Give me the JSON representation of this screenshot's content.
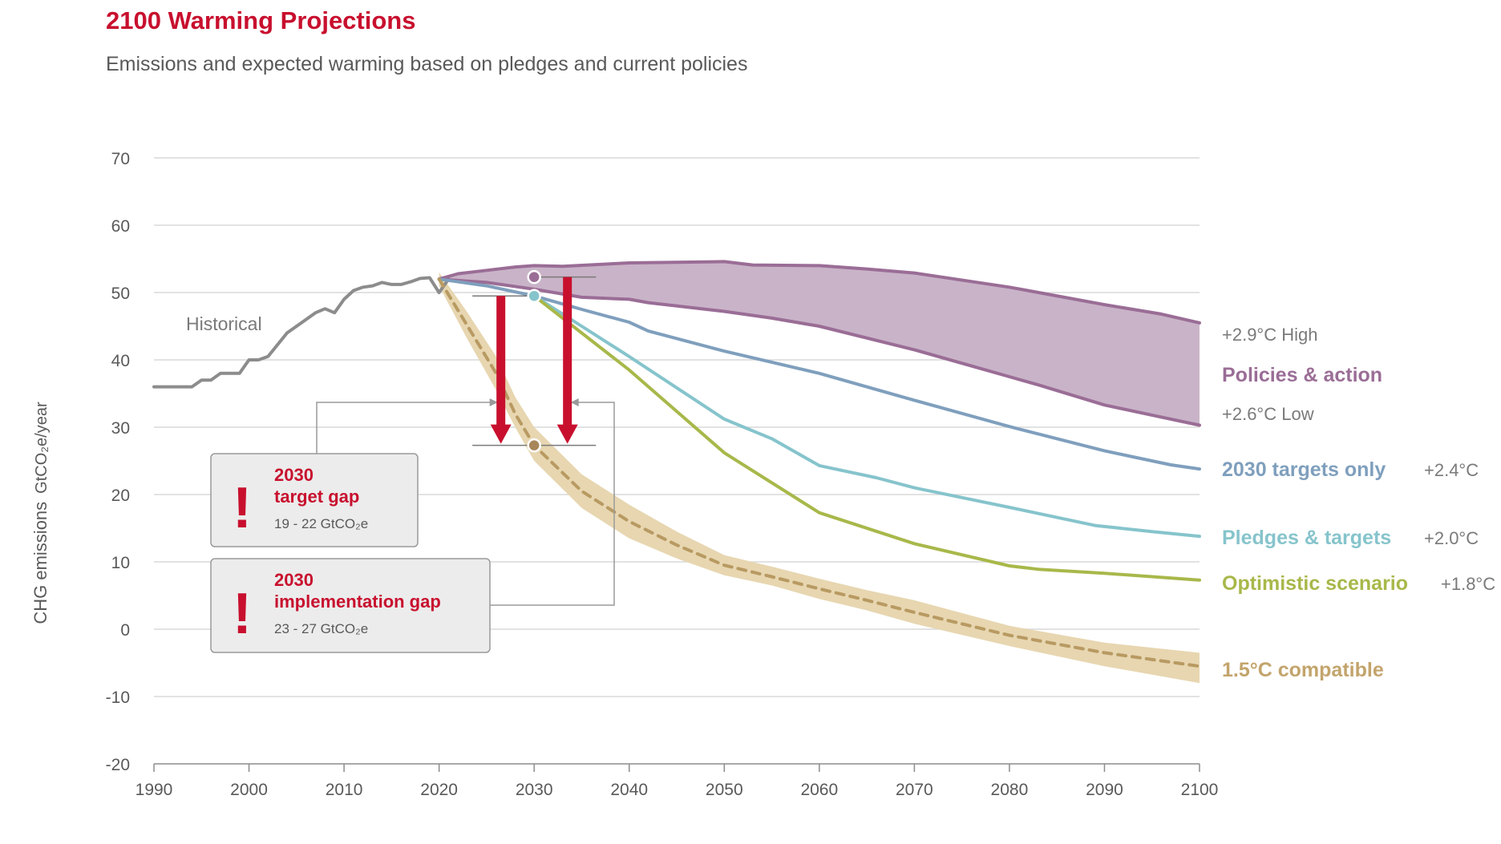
{
  "title": "2100 Warming Projections",
  "subtitle": "Emissions and expected warming based on pledges and current policies",
  "colors": {
    "title": "#c8102e",
    "historical": "#8c8c8c",
    "policies": "#9a6d96",
    "policies_fill": "#c9b3c8",
    "targets_2030": "#7f9fbd",
    "pledges": "#86c4cc",
    "optimistic": "#a8b84a",
    "compatible": "#c3a46c",
    "compatible_band": "#e7d6b0",
    "gap_arrow": "#c8102e"
  },
  "chart_data": {
    "type": "line",
    "title": "2100 Warming Projections",
    "subtitle": "Emissions and expected warming based on pledges and current policies",
    "xlabel": "",
    "ylabel": "CHG emissions",
    "ylabel_unit": "GtCO₂e/year",
    "xlim": [
      1990,
      2100
    ],
    "ylim": [
      -20,
      70
    ],
    "x_ticks": [
      "1990",
      "2000",
      "2010",
      "2020",
      "2030",
      "2040",
      "2050",
      "2060",
      "2070",
      "2080",
      "2090",
      "2100"
    ],
    "y_ticks": [
      "70",
      "60",
      "50",
      "40",
      "30",
      "20",
      "10",
      "0",
      "-10",
      "-20"
    ],
    "series": [
      {
        "id": "historical",
        "name": "Historical",
        "points": [
          [
            1990,
            36
          ],
          [
            1994,
            36
          ],
          [
            1995,
            37
          ],
          [
            1996,
            37
          ],
          [
            1997,
            38
          ],
          [
            1999,
            38
          ],
          [
            2000,
            40
          ],
          [
            2001,
            40
          ],
          [
            2002,
            40.5
          ],
          [
            2004,
            44
          ],
          [
            2006,
            46
          ],
          [
            2007,
            47
          ],
          [
            2008,
            47.6
          ],
          [
            2009,
            47
          ],
          [
            2010,
            49
          ],
          [
            2011,
            50.3
          ],
          [
            2012,
            50.8
          ],
          [
            2013,
            51
          ],
          [
            2014,
            51.5
          ],
          [
            2015,
            51.2
          ],
          [
            2016,
            51.2
          ],
          [
            2017,
            51.6
          ],
          [
            2018,
            52.1
          ],
          [
            2019,
            52.2
          ],
          [
            2020,
            50
          ],
          [
            2021,
            52
          ]
        ]
      },
      {
        "id": "policies_high",
        "name": "Policies & action (high)",
        "temp_label": "+2.9°C High",
        "points": [
          [
            2020,
            52
          ],
          [
            2022,
            52.8
          ],
          [
            2025,
            53.3
          ],
          [
            2028,
            53.8
          ],
          [
            2030,
            54
          ],
          [
            2033,
            53.9
          ],
          [
            2040,
            54.4
          ],
          [
            2050,
            54.6
          ],
          [
            2053,
            54.1
          ],
          [
            2060,
            54
          ],
          [
            2065,
            53.5
          ],
          [
            2070,
            52.9
          ],
          [
            2080,
            50.8
          ],
          [
            2090,
            48.2
          ],
          [
            2096,
            46.8
          ],
          [
            2100,
            45.5
          ]
        ]
      },
      {
        "id": "policies_low",
        "name": "Policies & action (low)",
        "temp_label": "+2.6°C Low",
        "points": [
          [
            2020,
            52
          ],
          [
            2025,
            51.5
          ],
          [
            2030,
            50.5
          ],
          [
            2035,
            49.3
          ],
          [
            2040,
            49
          ],
          [
            2042,
            48.5
          ],
          [
            2050,
            47.2
          ],
          [
            2055,
            46.2
          ],
          [
            2060,
            45
          ],
          [
            2070,
            41.5
          ],
          [
            2075,
            39.5
          ],
          [
            2080,
            37.5
          ],
          [
            2083,
            36.3
          ],
          [
            2090,
            33.3
          ],
          [
            2095,
            31.8
          ],
          [
            2100,
            30.3
          ]
        ]
      },
      {
        "id": "targets_2030",
        "name": "2030 targets only",
        "temp_label": "+2.4°C",
        "points": [
          [
            2020,
            52
          ],
          [
            2025,
            51
          ],
          [
            2030,
            49.5
          ],
          [
            2035,
            47.5
          ],
          [
            2040,
            45.6
          ],
          [
            2042,
            44.3
          ],
          [
            2050,
            41.3
          ],
          [
            2060,
            38
          ],
          [
            2070,
            34
          ],
          [
            2080,
            30.1
          ],
          [
            2090,
            26.5
          ],
          [
            2093,
            25.6
          ],
          [
            2097,
            24.4
          ],
          [
            2100,
            23.8
          ]
        ]
      },
      {
        "id": "pledges",
        "name": "Pledges & targets",
        "temp_label": "+2.0°C",
        "points": [
          [
            2030,
            49.5
          ],
          [
            2035,
            45
          ],
          [
            2040,
            40.5
          ],
          [
            2050,
            31.2
          ],
          [
            2055,
            28.3
          ],
          [
            2060,
            24.3
          ],
          [
            2066,
            22.5
          ],
          [
            2070,
            21
          ],
          [
            2080,
            18.1
          ],
          [
            2089,
            15.4
          ],
          [
            2095,
            14.5
          ],
          [
            2100,
            13.8
          ]
        ]
      },
      {
        "id": "optimistic",
        "name": "Optimistic scenario",
        "temp_label": "+1.8°C",
        "points": [
          [
            2030,
            49.5
          ],
          [
            2040,
            38.5
          ],
          [
            2050,
            26.2
          ],
          [
            2060,
            17.3
          ],
          [
            2070,
            12.7
          ],
          [
            2080,
            9.4
          ],
          [
            2083,
            8.9
          ],
          [
            2090,
            8.3
          ],
          [
            2100,
            7.3
          ]
        ]
      },
      {
        "id": "compatible",
        "name": "1.5°C compatible",
        "points": [
          [
            2020,
            52
          ],
          [
            2023,
            45
          ],
          [
            2026,
            38
          ],
          [
            2028,
            32
          ],
          [
            2030,
            27.3
          ],
          [
            2035,
            20.5
          ],
          [
            2040,
            16
          ],
          [
            2045,
            12.5
          ],
          [
            2050,
            9.5
          ],
          [
            2055,
            7.8
          ],
          [
            2060,
            6
          ],
          [
            2065,
            4.3
          ],
          [
            2070,
            2.5
          ],
          [
            2080,
            -0.9
          ],
          [
            2090,
            -3.5
          ],
          [
            2100,
            -5.5
          ]
        ],
        "band_upper": [
          [
            2020,
            53
          ],
          [
            2023,
            47
          ],
          [
            2026,
            40.5
          ],
          [
            2028,
            34.5
          ],
          [
            2030,
            30
          ],
          [
            2035,
            23
          ],
          [
            2040,
            18.5
          ],
          [
            2045,
            14.5
          ],
          [
            2050,
            11
          ],
          [
            2055,
            9.3
          ],
          [
            2060,
            7.5
          ],
          [
            2065,
            5.8
          ],
          [
            2070,
            4.3
          ],
          [
            2080,
            0.5
          ],
          [
            2090,
            -2
          ],
          [
            2100,
            -3.5
          ]
        ],
        "band_lower": [
          [
            2100,
            -8
          ],
          [
            2090,
            -5.5
          ],
          [
            2080,
            -2.5
          ],
          [
            2070,
            0.8
          ],
          [
            2065,
            2.8
          ],
          [
            2060,
            4.5
          ],
          [
            2055,
            6.5
          ],
          [
            2050,
            8
          ],
          [
            2045,
            10.5
          ],
          [
            2040,
            13.5
          ],
          [
            2035,
            18
          ],
          [
            2030,
            25
          ],
          [
            2028,
            30
          ],
          [
            2026,
            35.5
          ],
          [
            2023,
            43
          ],
          [
            2020,
            51
          ]
        ]
      }
    ],
    "key_points_2030": [
      {
        "series": "policies",
        "x": 2030,
        "y": 52.3
      },
      {
        "series": "pledges",
        "x": 2030,
        "y": 49.5
      },
      {
        "series": "compatible",
        "x": 2030,
        "y": 27.3
      }
    ],
    "gap_arrows": [
      {
        "name": "target-gap-arrow",
        "x": 2026.5,
        "y_from": 49.5,
        "y_to": 27.3
      },
      {
        "name": "implementation-gap-arrow",
        "x": 2033.5,
        "y_from": 52.3,
        "y_to": 27.3
      }
    ],
    "annotations": {
      "historical": "Historical",
      "policies_high": "+2.9°C High",
      "policies_name": "Policies & action",
      "policies_low": "+2.6°C Low",
      "targets_name": "2030 targets only",
      "targets_temp": "+2.4°C",
      "pledges_name": "Pledges & targets",
      "pledges_temp": "+2.0°C",
      "optimistic_name": "Optimistic scenario",
      "optimistic_temp": "+1.8°C",
      "compatible_name": "1.5°C compatible"
    },
    "gaps": [
      {
        "title_line1": "2030",
        "title_line2": "target gap",
        "range": "19 - 22 GtCO₂e"
      },
      {
        "title_line1": "2030",
        "title_line2": "implementation gap",
        "range": "23 - 27 GtCO₂e"
      }
    ],
    "gap_mark": "!"
  }
}
